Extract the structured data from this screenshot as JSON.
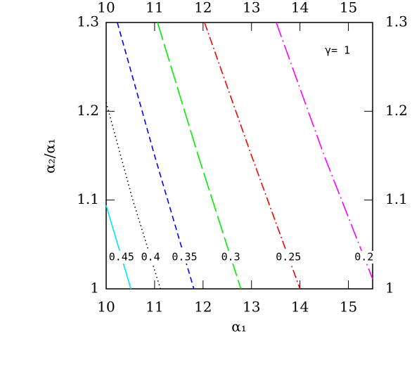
{
  "chart_data": {
    "type": "line",
    "xlabel": "α₁",
    "ylabel": "α₂/α₁",
    "annotation": "γ= 1",
    "xlim": [
      10,
      15.5
    ],
    "ylim": [
      1,
      1.3
    ],
    "xticks": [
      10,
      11,
      12,
      13,
      14,
      15
    ],
    "yticks": [
      1,
      1.1,
      1.2,
      1.3
    ],
    "series": [
      {
        "name": "0.45",
        "color": "#00e5ff",
        "linestyle": "solid",
        "x": [
          10,
          10.51
        ],
        "values": [
          1.094,
          1
        ]
      },
      {
        "name": "0.4",
        "color": "#000000",
        "linestyle": "dotted",
        "x": [
          10,
          10.55,
          11.12
        ],
        "values": [
          1.21,
          1.1,
          1
        ]
      },
      {
        "name": "0.35",
        "color": "#0000ff",
        "linestyle": "dashed",
        "x": [
          10.23,
          11.0,
          11.81
        ],
        "values": [
          1.3,
          1.15,
          1
        ]
      },
      {
        "name": "0.3",
        "color": "#00ee00",
        "linestyle": "longdash",
        "x": [
          11.06,
          11.9,
          12.78
        ],
        "values": [
          1.3,
          1.15,
          1
        ]
      },
      {
        "name": "0.25",
        "color": "#ff0000",
        "linestyle": "dashdot",
        "x": [
          12.03,
          13.0,
          14.0
        ],
        "values": [
          1.3,
          1.15,
          1
        ]
      },
      {
        "name": "0.2",
        "color": "#ff00ff",
        "linestyle": "longdashdot",
        "x": [
          13.51,
          14.5,
          15.5
        ],
        "values": [
          1.3,
          1.15,
          1.011
        ]
      }
    ]
  }
}
